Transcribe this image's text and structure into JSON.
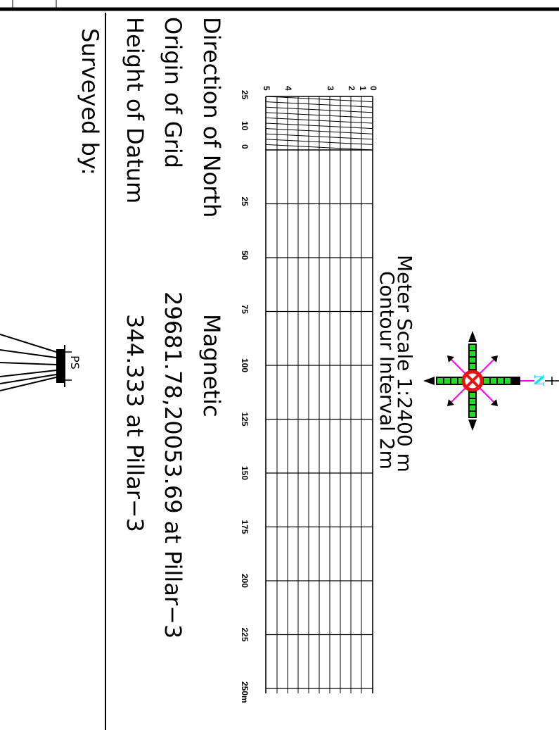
{
  "scale": {
    "title": "Meter Scale 1:2400 m",
    "contour": "Contour Interval 2m",
    "major_ticks": [
      "25",
      "50",
      "75",
      "100",
      "125",
      "150",
      "175",
      "200",
      "225",
      "250m"
    ],
    "minor_ticks": [
      "25",
      "10",
      "0"
    ],
    "diagonal_ticks": [
      "0",
      "1",
      "2",
      "3",
      "4",
      "5"
    ]
  },
  "info": {
    "direction_label": "Direction of North",
    "direction_value": "Magnetic",
    "origin_label": "Origin of Grid",
    "origin_value": "29681.78,20053.69 at Pillar−3",
    "height_label": "Height of Datum",
    "height_value": "344.333 at Pillar−3",
    "surveyed_label": "Surveyed by:"
  },
  "logo": {
    "text": "PS"
  },
  "compass": {
    "north_label": "N",
    "icon": "north-arrow-icon"
  },
  "colors": {
    "compass_green": "#22dd22",
    "compass_red": "#ee1111",
    "compass_magenta": "#ff00ff",
    "north_cyan": "#00e5ff"
  }
}
